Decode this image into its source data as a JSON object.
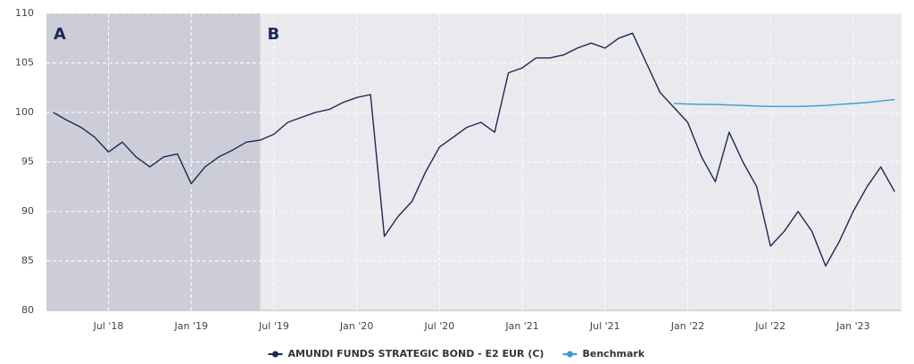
{
  "chart_data": {
    "type": "line",
    "x": [
      "2018-03",
      "2018-04",
      "2018-05",
      "2018-06",
      "2018-07",
      "2018-08",
      "2018-09",
      "2018-10",
      "2018-11",
      "2018-12",
      "2019-01",
      "2019-02",
      "2019-03",
      "2019-04",
      "2019-05",
      "2019-06",
      "2019-07",
      "2019-08",
      "2019-09",
      "2019-10",
      "2019-11",
      "2019-12",
      "2020-01",
      "2020-02",
      "2020-03",
      "2020-04",
      "2020-05",
      "2020-06",
      "2020-07",
      "2020-08",
      "2020-09",
      "2020-10",
      "2020-11",
      "2020-12",
      "2021-01",
      "2021-02",
      "2021-03",
      "2021-04",
      "2021-05",
      "2021-06",
      "2021-07",
      "2021-08",
      "2021-09",
      "2021-10",
      "2021-11",
      "2021-12",
      "2022-01",
      "2022-02",
      "2022-03",
      "2022-04",
      "2022-05",
      "2022-06",
      "2022-07",
      "2022-08",
      "2022-09",
      "2022-10",
      "2022-11",
      "2022-12",
      "2023-01",
      "2023-02",
      "2023-03",
      "2023-04"
    ],
    "series": [
      {
        "name": "AMUNDI FUNDS STRATEGIC BOND - E2 EUR (C)",
        "color": "#1a2a52",
        "values": [
          100,
          99.2,
          98.5,
          97.5,
          96,
          97,
          95.5,
          94.5,
          95.5,
          95.8,
          92.8,
          94.5,
          95.5,
          96.2,
          97,
          97.2,
          97.8,
          99,
          99.5,
          100,
          100.3,
          101,
          101.5,
          101.8,
          87.5,
          89.5,
          91,
          94,
          96.5,
          97.5,
          98.5,
          99,
          98,
          104,
          104.5,
          105.5,
          105.5,
          105.8,
          106.5,
          107,
          106.5,
          107.5,
          108,
          105,
          102,
          100.5,
          99,
          95.5,
          93,
          98,
          95,
          92.5,
          86.5,
          88,
          90,
          88,
          84.5,
          87,
          90,
          92.5,
          94.5,
          92
        ]
      },
      {
        "name": "Benchmark",
        "color": "#3a9ad9",
        "values": [
          null,
          null,
          null,
          null,
          null,
          null,
          null,
          null,
          null,
          null,
          null,
          null,
          null,
          null,
          null,
          null,
          null,
          null,
          null,
          null,
          null,
          null,
          null,
          null,
          null,
          null,
          null,
          null,
          null,
          null,
          null,
          null,
          null,
          null,
          null,
          null,
          null,
          null,
          null,
          null,
          null,
          null,
          null,
          null,
          null,
          100.9,
          100.85,
          100.8,
          100.8,
          100.75,
          100.7,
          100.65,
          100.6,
          100.6,
          100.6,
          100.65,
          100.7,
          100.8,
          100.9,
          101.0,
          101.15,
          101.3
        ]
      }
    ],
    "xlim": [
      "2018-03",
      "2023-04"
    ],
    "xticks": [
      {
        "value": "2018-07",
        "label": "Jul '18"
      },
      {
        "value": "2019-01",
        "label": "Jan '19"
      },
      {
        "value": "2019-07",
        "label": "Jul '19"
      },
      {
        "value": "2020-01",
        "label": "Jan '20"
      },
      {
        "value": "2020-07",
        "label": "Jul '20"
      },
      {
        "value": "2021-01",
        "label": "Jan '21"
      },
      {
        "value": "2021-07",
        "label": "Jul '21"
      },
      {
        "value": "2022-01",
        "label": "Jan '22"
      },
      {
        "value": "2022-07",
        "label": "Jul '22"
      },
      {
        "value": "2023-01",
        "label": "Jan '23"
      }
    ],
    "ylim": [
      80,
      110
    ],
    "yticks": [
      80,
      85,
      90,
      95,
      100,
      105,
      110
    ],
    "grid": true,
    "legend": "bottom",
    "regions": [
      {
        "label": "A",
        "start": "2018-03",
        "end": "2019-06",
        "color": "#c6c6d2"
      },
      {
        "label": "B",
        "start": "2019-06",
        "end": "2023-04",
        "color": "#e6e6ec"
      }
    ]
  }
}
